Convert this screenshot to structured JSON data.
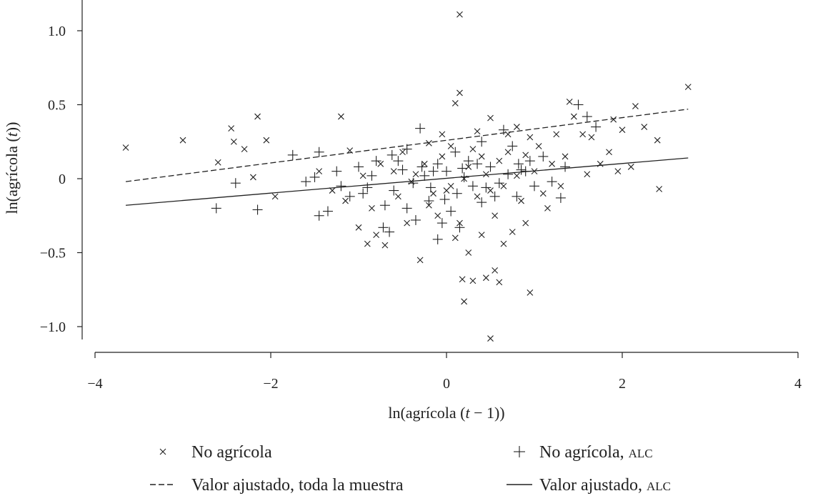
{
  "chart_data": {
    "type": "scatter",
    "xlabel_parts": [
      "ln(agrícola (",
      "t",
      " − 1))"
    ],
    "ylabel_parts": [
      "ln(agrícola (",
      "t",
      "))"
    ],
    "xlim": [
      -4.1,
      4.1
    ],
    "ylim": [
      -1.17,
      1.2
    ],
    "x_ticks": [
      -4,
      -2,
      0,
      2,
      4
    ],
    "x_tick_labels": [
      "−4",
      "−2",
      "0",
      "2",
      "4"
    ],
    "y_ticks": [
      -1.0,
      -0.5,
      0,
      0.5,
      1.0
    ],
    "y_tick_labels": [
      "−1.0",
      "−0.5",
      "0",
      "0.5",
      "1.0"
    ],
    "grid": false,
    "legend_position": "bottom",
    "legend": [
      {
        "symbol": "x-marker",
        "label": "No agrícola",
        "suffix": ""
      },
      {
        "symbol": "plus-marker",
        "label": "No agrícola, ",
        "suffix": "ALC"
      },
      {
        "symbol": "dashed-line",
        "label": "Valor ajustado, toda la muestra",
        "suffix": ""
      },
      {
        "symbol": "solid-line",
        "label": "Valor ajustado, ",
        "suffix": "ALC"
      }
    ],
    "series": [
      {
        "name": "No agrícola",
        "marker": "x",
        "points": [
          [
            -3.65,
            0.21
          ],
          [
            -3.0,
            0.26
          ],
          [
            -2.6,
            0.11
          ],
          [
            -2.45,
            0.34
          ],
          [
            -2.42,
            0.25
          ],
          [
            -2.3,
            0.2
          ],
          [
            -2.2,
            0.01
          ],
          [
            -2.15,
            0.42
          ],
          [
            -2.05,
            0.26
          ],
          [
            -1.95,
            -0.12
          ],
          [
            -1.2,
            0.42
          ],
          [
            -1.1,
            0.19
          ],
          [
            -1.0,
            -0.33
          ],
          [
            -0.9,
            -0.44
          ],
          [
            -0.8,
            -0.38
          ],
          [
            -0.7,
            -0.45
          ],
          [
            -0.5,
            0.18
          ],
          [
            -0.3,
            -0.55
          ],
          [
            -0.2,
            0.24
          ],
          [
            -0.15,
            -0.1
          ],
          [
            0.1,
            0.51
          ],
          [
            0.15,
            0.58
          ],
          [
            0.15,
            1.11
          ],
          [
            0.18,
            -0.68
          ],
          [
            0.2,
            -0.83
          ],
          [
            0.25,
            -0.5
          ],
          [
            0.3,
            -0.69
          ],
          [
            0.4,
            -0.38
          ],
          [
            0.45,
            -0.67
          ],
          [
            0.5,
            -1.08
          ],
          [
            0.55,
            -0.62
          ],
          [
            0.6,
            -0.7
          ],
          [
            0.65,
            -0.44
          ],
          [
            0.5,
            0.41
          ],
          [
            0.7,
            0.3
          ],
          [
            0.75,
            -0.36
          ],
          [
            0.8,
            0.35
          ],
          [
            0.9,
            0.16
          ],
          [
            0.95,
            -0.77
          ],
          [
            1.05,
            0.22
          ],
          [
            1.2,
            0.1
          ],
          [
            1.3,
            -0.05
          ],
          [
            1.4,
            0.52
          ],
          [
            1.55,
            0.3
          ],
          [
            1.65,
            0.28
          ],
          [
            1.85,
            0.18
          ],
          [
            1.9,
            0.4
          ],
          [
            1.95,
            0.05
          ],
          [
            2.0,
            0.33
          ],
          [
            2.1,
            0.08
          ],
          [
            2.15,
            0.49
          ],
          [
            2.25,
            0.35
          ],
          [
            2.4,
            0.26
          ],
          [
            2.42,
            -0.07
          ],
          [
            2.75,
            0.62
          ],
          [
            -0.6,
            0.05
          ],
          [
            -0.4,
            -0.02
          ],
          [
            -0.25,
            0.1
          ],
          [
            -0.05,
            0.15
          ],
          [
            0.05,
            -0.05
          ],
          [
            0.25,
            0.08
          ],
          [
            0.35,
            -0.12
          ],
          [
            0.45,
            0.03
          ],
          [
            0.6,
            0.12
          ],
          [
            0.85,
            -0.15
          ],
          [
            1.0,
            0.05
          ],
          [
            1.15,
            -0.2
          ],
          [
            -0.85,
            -0.2
          ],
          [
            -0.45,
            -0.3
          ],
          [
            -0.1,
            -0.25
          ],
          [
            0.15,
            -0.3
          ],
          [
            0.3,
            0.2
          ],
          [
            0.55,
            -0.25
          ],
          [
            0.7,
            0.18
          ],
          [
            1.1,
            -0.1
          ],
          [
            1.35,
            0.15
          ],
          [
            1.6,
            0.03
          ],
          [
            -1.3,
            -0.08
          ],
          [
            -1.45,
            0.05
          ],
          [
            -0.75,
            0.1
          ],
          [
            -0.55,
            -0.12
          ],
          [
            -0.35,
            0.03
          ],
          [
            0.0,
            -0.08
          ],
          [
            0.2,
            0.0
          ],
          [
            0.4,
            0.15
          ],
          [
            0.65,
            -0.05
          ],
          [
            0.8,
            0.02
          ],
          [
            0.95,
            0.28
          ],
          [
            1.25,
            0.3
          ],
          [
            -0.95,
            0.02
          ],
          [
            -1.15,
            -0.15
          ],
          [
            0.1,
            -0.4
          ],
          [
            -0.05,
            0.3
          ],
          [
            0.35,
            0.32
          ],
          [
            0.9,
            -0.3
          ],
          [
            1.45,
            0.42
          ],
          [
            1.75,
            0.1
          ],
          [
            -0.2,
            -0.18
          ],
          [
            0.05,
            0.22
          ],
          [
            0.5,
            -0.08
          ]
        ]
      },
      {
        "name": "No agrícola, ALC",
        "marker": "+",
        "points": [
          [
            -2.62,
            -0.2
          ],
          [
            -2.4,
            -0.03
          ],
          [
            -2.15,
            -0.21
          ],
          [
            -1.75,
            0.16
          ],
          [
            -1.5,
            0.01
          ],
          [
            -1.45,
            0.18
          ],
          [
            -1.45,
            -0.25
          ],
          [
            -1.35,
            -0.22
          ],
          [
            -1.25,
            0.05
          ],
          [
            -1.1,
            -0.12
          ],
          [
            -1.0,
            0.08
          ],
          [
            -0.9,
            -0.06
          ],
          [
            -0.8,
            0.12
          ],
          [
            -0.72,
            -0.33
          ],
          [
            -0.65,
            -0.36
          ],
          [
            -0.6,
            -0.08
          ],
          [
            -0.5,
            0.06
          ],
          [
            -0.45,
            -0.2
          ],
          [
            -0.35,
            -0.28
          ],
          [
            -0.3,
            0.34
          ],
          [
            -0.25,
            0.02
          ],
          [
            -0.2,
            -0.15
          ],
          [
            -0.1,
            0.1
          ],
          [
            -0.1,
            -0.41
          ],
          [
            -0.05,
            -0.3
          ],
          [
            0.0,
            0.05
          ],
          [
            0.05,
            -0.22
          ],
          [
            0.1,
            0.18
          ],
          [
            0.15,
            -0.33
          ],
          [
            0.2,
            0.01
          ],
          [
            0.3,
            -0.05
          ],
          [
            0.4,
            -0.16
          ],
          [
            0.5,
            0.08
          ],
          [
            0.6,
            -0.03
          ],
          [
            0.65,
            0.33
          ],
          [
            0.75,
            0.22
          ],
          [
            0.8,
            -0.12
          ],
          [
            0.85,
            0.06
          ],
          [
            0.9,
            0.05
          ],
          [
            1.0,
            -0.05
          ],
          [
            1.1,
            0.15
          ],
          [
            1.2,
            -0.02
          ],
          [
            1.3,
            -0.13
          ],
          [
            1.35,
            0.08
          ],
          [
            1.5,
            0.5
          ],
          [
            1.6,
            0.42
          ],
          [
            1.7,
            0.35
          ],
          [
            -0.55,
            0.12
          ],
          [
            -0.38,
            -0.03
          ],
          [
            -0.15,
            0.05
          ],
          [
            0.25,
            0.12
          ],
          [
            0.45,
            -0.06
          ],
          [
            0.7,
            0.03
          ],
          [
            -0.85,
            0.02
          ],
          [
            -0.28,
            0.08
          ],
          [
            -0.18,
            -0.06
          ],
          [
            0.12,
            -0.1
          ],
          [
            0.35,
            0.1
          ],
          [
            0.55,
            -0.12
          ],
          [
            0.95,
            0.12
          ],
          [
            -1.2,
            -0.05
          ],
          [
            -0.7,
            -0.18
          ],
          [
            -0.45,
            0.2
          ],
          [
            -0.02,
            -0.14
          ],
          [
            0.4,
            0.25
          ],
          [
            0.82,
            0.1
          ],
          [
            -1.6,
            -0.02
          ],
          [
            -0.95,
            -0.1
          ],
          [
            -0.62,
            0.16
          ],
          [
            0.18,
            0.07
          ]
        ]
      }
    ],
    "fitted_lines": [
      {
        "name": "Valor ajustado, toda la muestra",
        "style": "dashed",
        "x": [
          -3.65,
          2.75
        ],
        "y": [
          -0.02,
          0.47
        ]
      },
      {
        "name": "Valor ajustado, ALC",
        "style": "solid",
        "x": [
          -3.65,
          2.75
        ],
        "y": [
          -0.18,
          0.14
        ]
      }
    ]
  }
}
